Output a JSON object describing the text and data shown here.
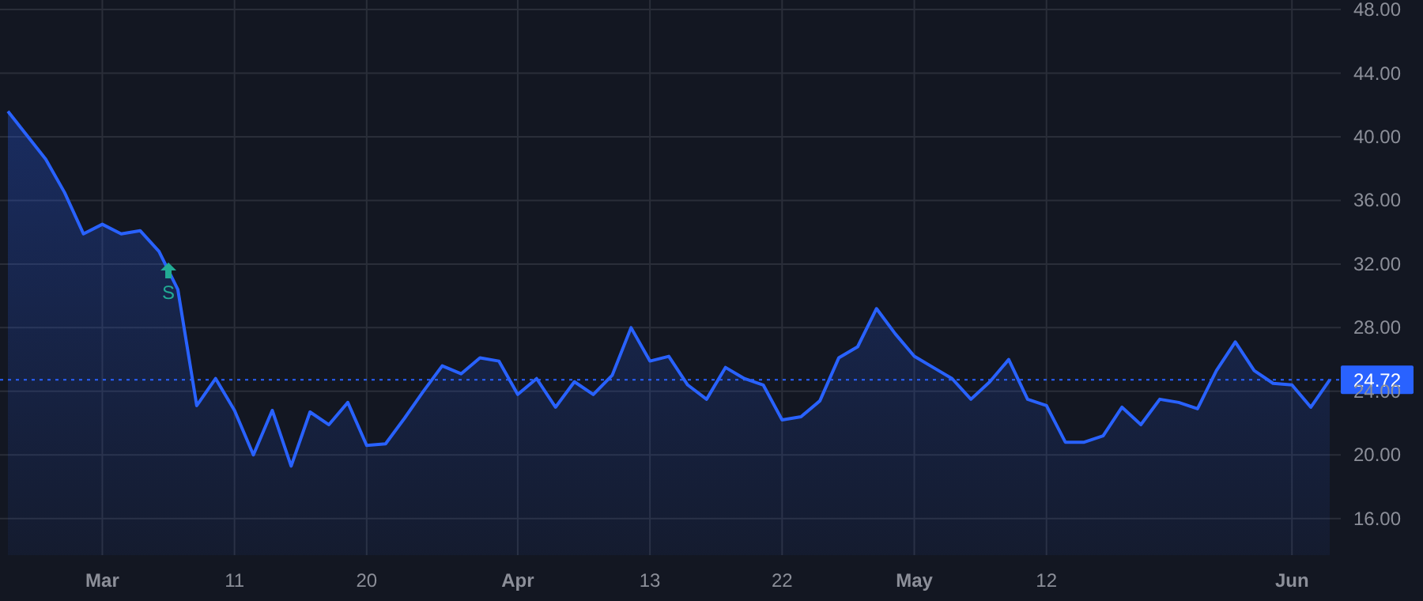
{
  "chart_data": {
    "type": "area",
    "categories": [
      null,
      null,
      null,
      null,
      null,
      "Mar",
      null,
      null,
      null,
      null,
      null,
      null,
      "11",
      null,
      null,
      null,
      null,
      null,
      null,
      "20",
      null,
      null,
      null,
      null,
      null,
      null,
      null,
      "Apr",
      null,
      null,
      null,
      null,
      null,
      null,
      "13",
      null,
      null,
      null,
      null,
      null,
      null,
      "22",
      null,
      null,
      null,
      null,
      null,
      null,
      "May",
      null,
      null,
      null,
      null,
      null,
      null,
      "12",
      null,
      null,
      null,
      null,
      null,
      null,
      null,
      null,
      null,
      null,
      null,
      null,
      "Jun",
      null,
      null
    ],
    "series": [
      {
        "color": "#2962ff",
        "values": [
          41.6,
          40.1,
          38.6,
          36.5,
          33.9,
          34.5,
          33.9,
          34.1,
          32.8,
          30.4,
          23.1,
          24.8,
          22.8,
          20.0,
          22.8,
          19.3,
          22.7,
          21.9,
          23.3,
          20.6,
          20.7,
          22.3,
          24.0,
          25.6,
          25.1,
          26.1,
          25.9,
          23.8,
          24.8,
          23.0,
          24.6,
          23.8,
          25.0,
          28.0,
          25.9,
          26.2,
          24.4,
          23.5,
          25.5,
          24.8,
          24.4,
          22.2,
          22.4,
          23.4,
          26.1,
          26.8,
          29.2,
          27.6,
          26.2,
          25.5,
          24.8,
          23.5,
          24.6,
          26.0,
          23.5,
          23.1,
          20.8,
          20.8,
          21.2,
          23.0,
          21.9,
          23.5,
          23.3,
          22.9,
          25.3,
          27.1,
          25.3,
          24.5,
          24.4,
          23.0,
          24.72
        ]
      }
    ],
    "ylim": [
      13.7,
      48.6
    ],
    "yticks": [
      {
        "value": 16,
        "label": "16.00"
      },
      {
        "value": 20,
        "label": "20.00"
      },
      {
        "value": 24,
        "label": "24.00"
      },
      {
        "value": 28,
        "label": "28.00"
      },
      {
        "value": 32,
        "label": "32.00"
      },
      {
        "value": 36,
        "label": "36.00"
      },
      {
        "value": 40,
        "label": "40.00"
      },
      {
        "value": 44,
        "label": "44.00"
      },
      {
        "value": 48,
        "label": "48.00"
      }
    ],
    "ref_lines": [
      {
        "axis": "y",
        "value": 24.72,
        "label": "24.72",
        "color": "#2962ff",
        "line_style": "dotted"
      }
    ],
    "annotations": [
      {
        "text": "S",
        "y": 31.6
      }
    ],
    "grid": true,
    "line_style": "solid",
    "marker": "none"
  }
}
